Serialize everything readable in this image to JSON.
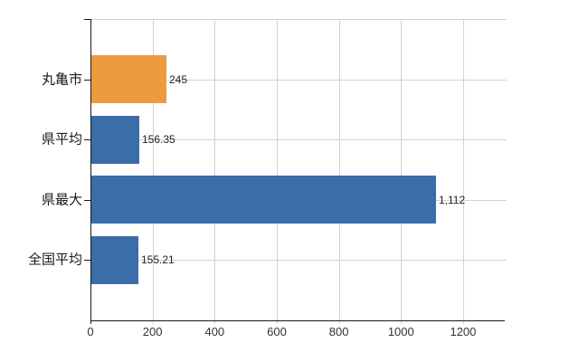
{
  "chart_data": {
    "type": "bar",
    "orientation": "horizontal",
    "title": "",
    "xlabel": "",
    "ylabel": "",
    "legend": "none",
    "grid": "on",
    "categories": [
      "丸亀市",
      "県平均",
      "県最大",
      "全国平均"
    ],
    "values": [
      245,
      156.35,
      1112,
      155.21
    ],
    "value_labels": [
      "245",
      "156.35",
      "1,112",
      "155.21"
    ],
    "bar_colors": [
      "#EC9B3E",
      "#3B6DA8",
      "#3B6DA8",
      "#3B6DA8"
    ],
    "x_ticks": [
      0,
      200,
      400,
      600,
      800,
      1000,
      1200
    ],
    "x_tick_labels": [
      "0",
      "200",
      "400",
      "600",
      "800",
      "1000",
      "1200"
    ],
    "xlim": [
      0,
      1340
    ]
  },
  "colors": {
    "background": "#FFFFFF",
    "bar_highlight": "#EC9B3E",
    "bar_default": "#3B6DA8",
    "gridline": "#D2D2D2",
    "axis": "#1A1A1A",
    "text": "#1A1A1A",
    "value_text": "#222222",
    "tick_text": "#333333"
  }
}
